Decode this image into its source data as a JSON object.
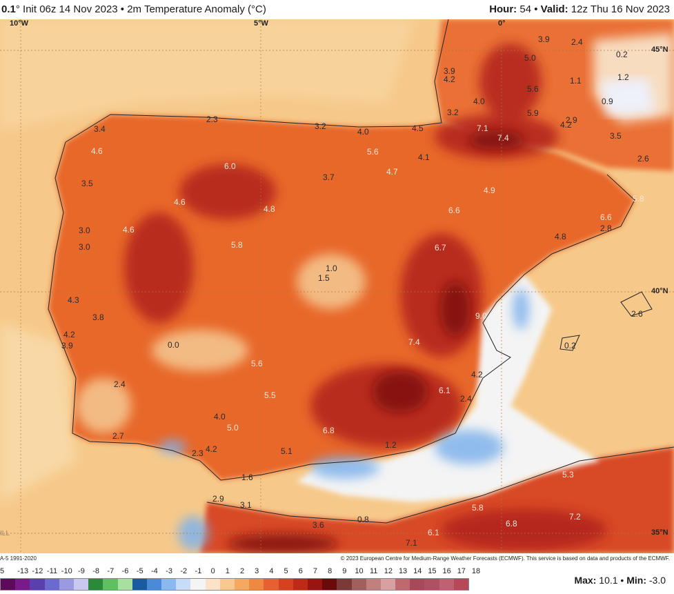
{
  "header": {
    "resolution": "0.1",
    "init": "Init 06z 14 Nov 2023",
    "variable": "2m Temperature Anomaly (°C)",
    "hour_label": "Hour:",
    "hour": "54",
    "valid_label": "Valid:",
    "valid": "12z Thu 16 Nov 2023"
  },
  "axes": {
    "lon": [
      "10°W",
      "5°W",
      "0°"
    ],
    "lat": [
      "45°N",
      "40°N",
      "35°N"
    ]
  },
  "map_labels": [
    "3.9",
    "2.4",
    "0.2",
    "5.0",
    "4.2",
    "3.9",
    "1.1",
    "1.2",
    "5.6",
    "0.9",
    "4.0",
    "3.2",
    "5.9",
    "2.9",
    "4.2",
    "2.3",
    "3.2",
    "7.1",
    "7.4",
    "3.5",
    "3.4",
    "4.0",
    "4.5",
    "4.6",
    "5.6",
    "4.1",
    "6.0",
    "2.6",
    "3.7",
    "4.7",
    "3.5",
    "4.9",
    "4.6",
    "5.8",
    "4.8",
    "6.6",
    "6.6",
    "2.8",
    "3.0",
    "4.6",
    "4.8",
    "3.0",
    "5.8",
    "6.7",
    "1.0",
    "1.5",
    "4.3",
    "3.8",
    "9.0",
    "2.6",
    "4.2",
    "3.9",
    "0.0",
    "7.4",
    "0.2",
    "5.6",
    "4.2",
    "2.4",
    "6.1",
    "5.5",
    "2.4",
    "4.0",
    "5.0",
    "6.8",
    "2.7",
    "1.2",
    "4.2",
    "2.3",
    "5.1",
    "1.6",
    "5.3",
    "2.9",
    "3.1",
    "5.8",
    "7.2",
    "6.8",
    "3.6",
    "0.8",
    "6.1",
    "7.1"
  ],
  "faded_marks": [
    "ILL"
  ],
  "credit": {
    "left": "A-5 1991-2020",
    "right": "© 2023 European Centre for Medium-Range Weather Forecasts (ECMWF). This service is based on data and products of the ECMWF."
  },
  "legend": {
    "ticks": [
      "-13",
      "-12",
      "-11",
      "-10",
      "-9",
      "-8",
      "-7",
      "-6",
      "-5",
      "-4",
      "-3",
      "-2",
      "-1",
      "0",
      "1",
      "2",
      "3",
      "4",
      "5",
      "6",
      "7",
      "8",
      "9",
      "10",
      "11",
      "12",
      "13",
      "14",
      "15",
      "16",
      "17",
      "18"
    ],
    "first_tick": "5",
    "colors": [
      "#5e0a5a",
      "#7a1a8a",
      "#5a3fb0",
      "#6a6ad0",
      "#9a9ae0",
      "#c8c8f0",
      "#2a8a3a",
      "#5ec05e",
      "#a8e0a0",
      "#1a5aa0",
      "#4a8ad8",
      "#8ab8f0",
      "#c8dcf8",
      "#f4f4f4",
      "#fbe2c8",
      "#f8c890",
      "#f5a860",
      "#f08840",
      "#e86030",
      "#d84020",
      "#c02818",
      "#9a1410",
      "#6a0a0a",
      "#7a3a3a",
      "#a06060",
      "#c08080",
      "#d8a0a0",
      "#c06870",
      "#a84858",
      "#b05060",
      "#c06070",
      "#b84858"
    ],
    "max_label": "Max:",
    "max": "10.1",
    "min_label": "Min:",
    "min": "-3.0"
  }
}
